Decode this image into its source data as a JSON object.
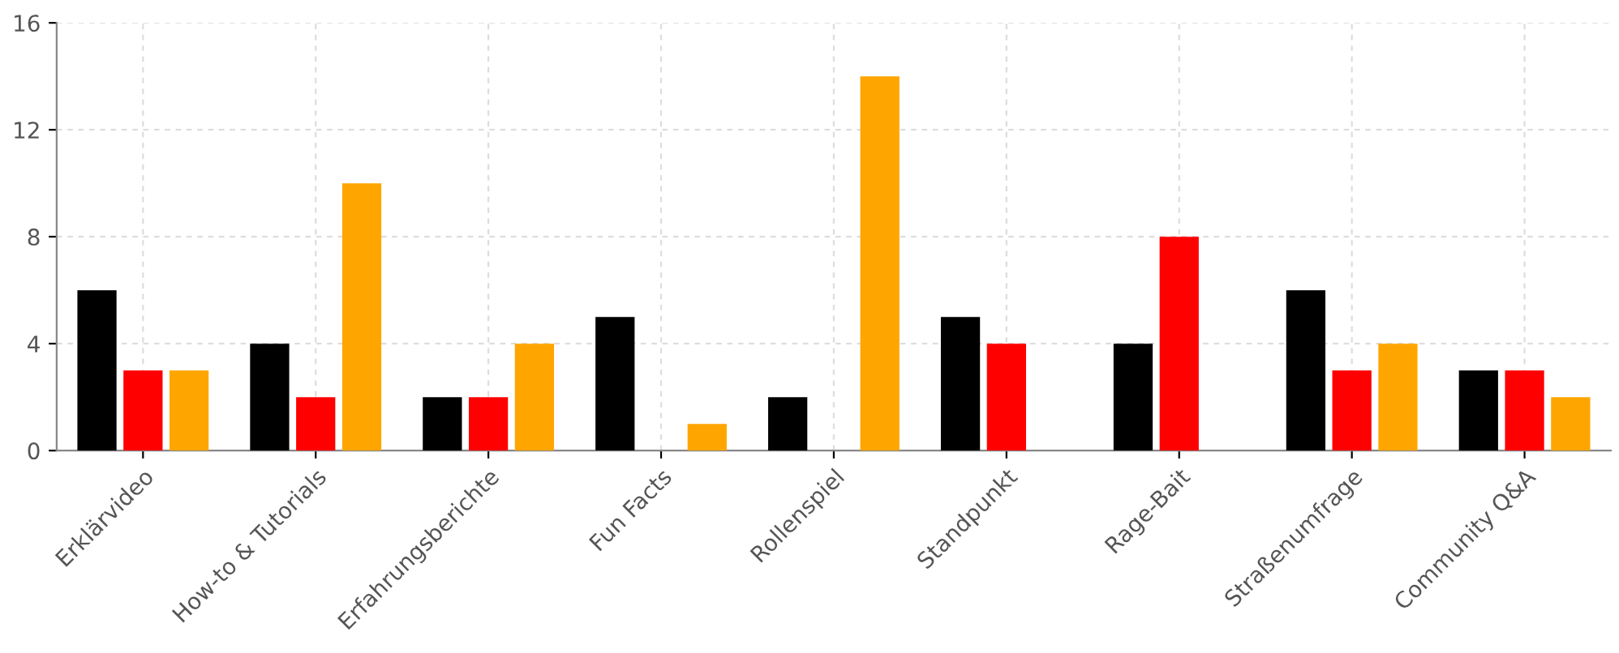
{
  "chart_data": {
    "type": "bar",
    "categories": [
      "Erklärvideo",
      "How-to & Tutorials",
      "Erfahrungsberichte",
      "Fun Facts",
      "Rollenspiel",
      "Standpunkt",
      "Rage-Bait",
      "Straßenumfrage",
      "Community Q&A"
    ],
    "series": [
      {
        "color": "#000000",
        "values": [
          6,
          4,
          2,
          5,
          2,
          5,
          4,
          6,
          3
        ]
      },
      {
        "color": "#ff0000",
        "values": [
          3,
          2,
          2,
          0,
          0,
          4,
          8,
          3,
          3
        ]
      },
      {
        "color": "#ffa500",
        "values": [
          3,
          10,
          4,
          1,
          14,
          0,
          0,
          4,
          2
        ]
      }
    ],
    "ylim": [
      0,
      16
    ],
    "yticks": [
      0,
      4,
      8,
      12,
      16
    ],
    "grid": true
  }
}
